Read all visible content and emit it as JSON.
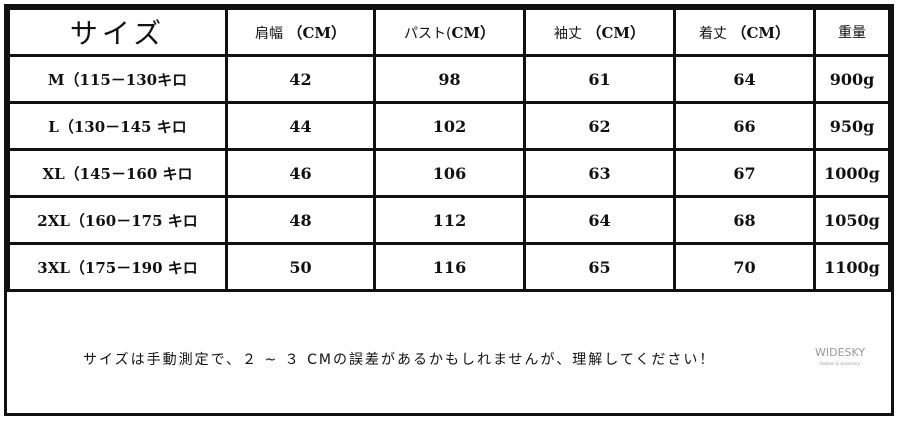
{
  "headers": [
    "サイズ",
    "肩幅",
    "パスト(",
    "袖丈",
    "着丈",
    "重量"
  ],
  "header_units": [
    "",
    "（CM）",
    "CM）",
    "（CM）",
    "（CM）",
    ""
  ],
  "rows": [
    [
      "M（115－130キロ",
      "42",
      "98",
      "61",
      "64",
      "900g"
    ],
    [
      "L（130－145 キロ",
      "44",
      "102",
      "62",
      "66",
      "950g"
    ],
    [
      "XL（145－160 キロ",
      "46",
      "106",
      "63",
      "67",
      "1000g"
    ],
    [
      "2XL（160－175 キロ",
      "48",
      "112",
      "64",
      "68",
      "1050g"
    ],
    [
      "3XL（175－190 キロ",
      "50",
      "116",
      "65",
      "70",
      "1100g"
    ]
  ],
  "note": "サイズは手動測定で、２ ~ ３ CMの誤差があるかもしれませんが、理解してください！",
  "logo": {
    "name": "WIDESKY",
    "tagline": "fashion & accessory"
  }
}
